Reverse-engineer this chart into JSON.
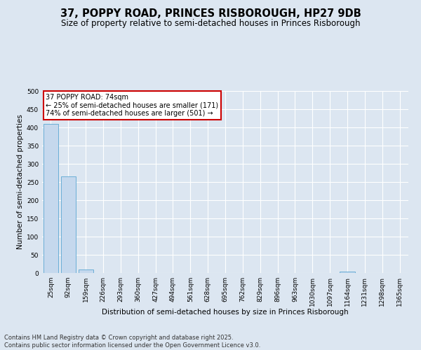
{
  "title1": "37, POPPY ROAD, PRINCES RISBOROUGH, HP27 9DB",
  "title2": "Size of property relative to semi-detached houses in Princes Risborough",
  "xlabel": "Distribution of semi-detached houses by size in Princes Risborough",
  "ylabel": "Number of semi-detached properties",
  "categories": [
    "25sqm",
    "92sqm",
    "159sqm",
    "226sqm",
    "293sqm",
    "360sqm",
    "427sqm",
    "494sqm",
    "561sqm",
    "628sqm",
    "695sqm",
    "762sqm",
    "829sqm",
    "896sqm",
    "963sqm",
    "1030sqm",
    "1097sqm",
    "1164sqm",
    "1231sqm",
    "1298sqm",
    "1365sqm"
  ],
  "values": [
    410,
    265,
    9,
    0,
    0,
    0,
    0,
    0,
    0,
    0,
    0,
    0,
    0,
    0,
    0,
    0,
    0,
    4,
    0,
    0,
    0
  ],
  "bar_color": "#c5d8ed",
  "bar_edge_color": "#6aaed6",
  "annotation_title": "37 POPPY ROAD: 74sqm",
  "annotation_line1": "← 25% of semi-detached houses are smaller (171)",
  "annotation_line2": "74% of semi-detached houses are larger (501) →",
  "annotation_box_facecolor": "#ffffff",
  "annotation_border_color": "#cc0000",
  "ylim": [
    0,
    500
  ],
  "yticks": [
    0,
    50,
    100,
    150,
    200,
    250,
    300,
    350,
    400,
    450,
    500
  ],
  "bg_color": "#dce6f1",
  "plot_bg_color": "#dce6f1",
  "grid_color": "#ffffff",
  "footer_line1": "Contains HM Land Registry data © Crown copyright and database right 2025.",
  "footer_line2": "Contains public sector information licensed under the Open Government Licence v3.0.",
  "title1_fontsize": 10.5,
  "title2_fontsize": 8.5,
  "xlabel_fontsize": 7.5,
  "ylabel_fontsize": 7.5,
  "tick_fontsize": 6.5,
  "annotation_fontsize": 7,
  "footer_fontsize": 6
}
